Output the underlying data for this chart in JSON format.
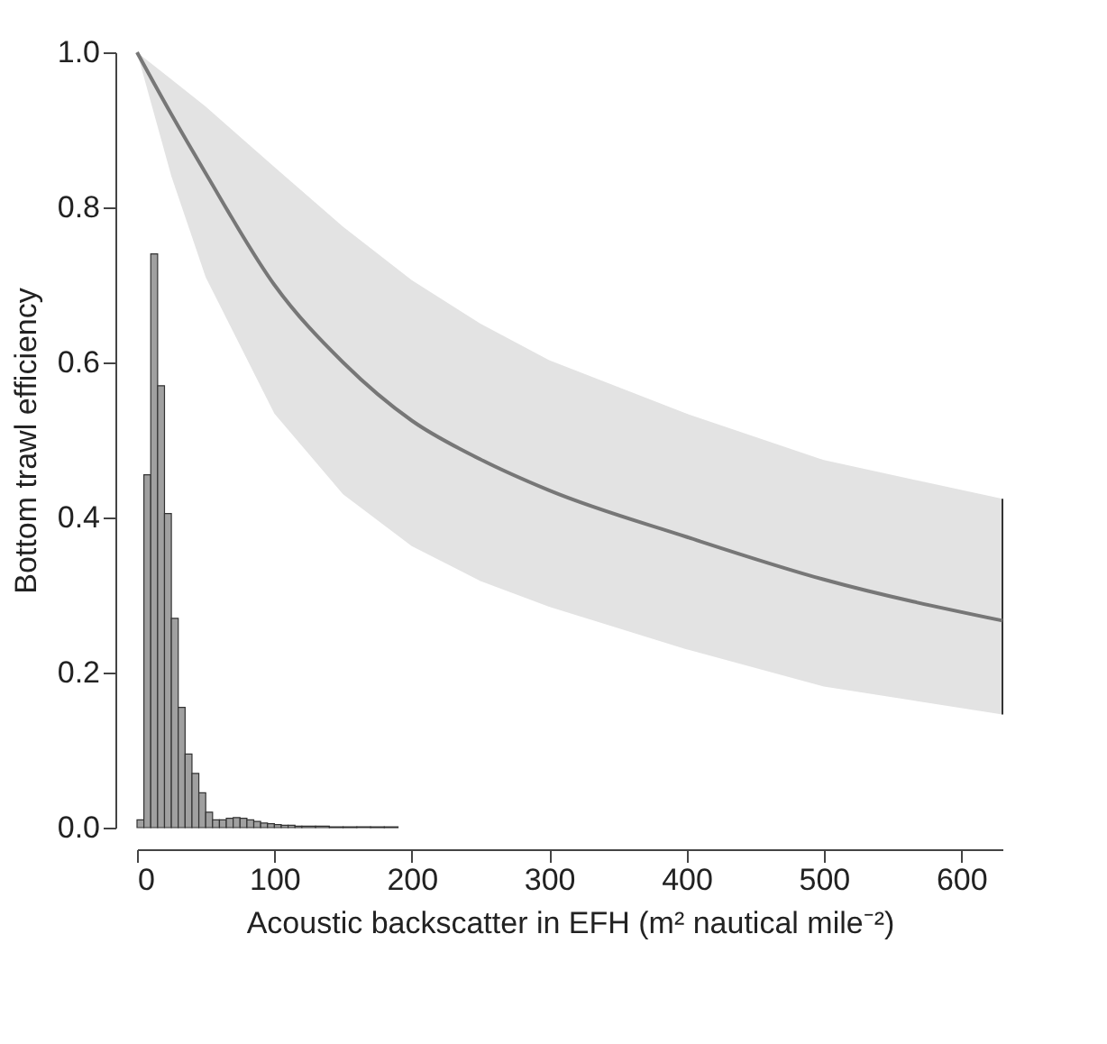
{
  "chart_data": {
    "type": "line",
    "xlabel": "Acoustic backscatter in EFH (m² nautical mile⁻²)",
    "ylabel": "Bottom trawl efficiency",
    "xlim": [
      0,
      630
    ],
    "xticks": [
      0,
      100,
      200,
      300,
      400,
      500,
      600
    ],
    "ylim": [
      0,
      1
    ],
    "yticks": [
      {
        "value": 0,
        "label": "0.0"
      },
      0.2,
      0.4,
      0.6,
      0.8,
      {
        "value": 1,
        "label": "1.0"
      }
    ],
    "series": [
      {
        "color": "#777777",
        "x": [
          0,
          25,
          50,
          100,
          150,
          200,
          250,
          300,
          400,
          500,
          630
        ],
        "values": [
          1.0,
          0.92,
          0.844,
          0.7,
          0.6,
          0.525,
          0.475,
          0.435,
          0.375,
          0.32,
          0.267
        ],
        "lower": [
          1.0,
          0.84,
          0.71,
          0.534,
          0.43,
          0.363,
          0.318,
          0.285,
          0.23,
          0.182,
          0.146
        ],
        "upper": [
          1.0,
          0.965,
          0.93,
          0.852,
          0.775,
          0.706,
          0.65,
          0.603,
          0.534,
          0.474,
          0.424
        ]
      },
      {
        "type": "histogram",
        "color": "#a0a0a0",
        "bins": [
          0,
          5,
          10,
          15,
          20,
          25,
          30,
          35,
          40,
          45,
          50,
          55,
          60,
          65,
          70,
          75,
          80,
          85,
          90,
          95,
          100,
          105,
          110,
          115,
          120,
          130,
          140,
          150,
          160,
          170,
          180,
          190
        ],
        "values": [
          0.01,
          0.455,
          0.74,
          0.57,
          0.405,
          0.27,
          0.155,
          0.095,
          0.07,
          0.045,
          0.02,
          0.01,
          0.01,
          0.012,
          0.013,
          0.012,
          0.01,
          0.008,
          0.006,
          0.005,
          0.004,
          0.003,
          0.003,
          0.002,
          0.002,
          0.002,
          0.001,
          0.001,
          0.001,
          0.001,
          0.001
        ]
      }
    ]
  }
}
